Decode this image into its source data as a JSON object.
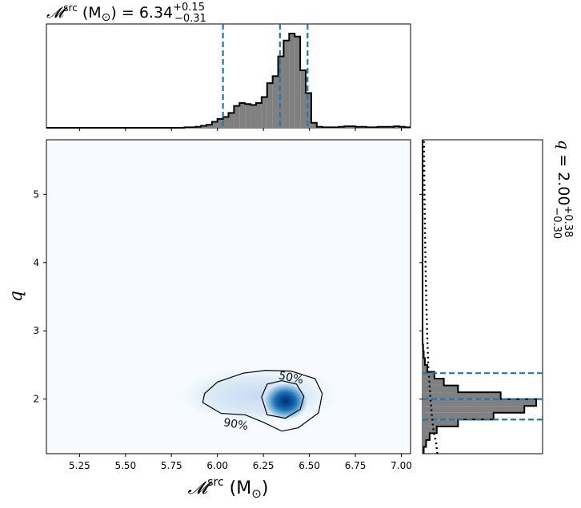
{
  "chart_data": [
    {
      "type": "histogram",
      "panel": "top-marginal",
      "title_symbol": "𝓜",
      "title_super": "src",
      "title_unit": " (M",
      "title_sun": "⊙",
      "title_close": ")",
      "title_eq": " = 6.34",
      "title_plus": "+0.15",
      "title_minus": "−0.31",
      "xlim": [
        5.07,
        7.05
      ],
      "bin_edges_start": 5.07,
      "bin_width": 0.03,
      "counts": [
        0,
        0,
        0,
        0,
        0,
        0,
        0,
        0,
        0,
        0,
        0,
        0,
        0,
        0,
        0,
        0,
        0,
        0,
        0,
        0,
        0,
        0,
        0,
        0,
        0,
        0.005,
        0.005,
        0.01,
        0.02,
        0.03,
        0.06,
        0.09,
        0.11,
        0.15,
        0.22,
        0.25,
        0.24,
        0.23,
        0.25,
        0.31,
        0.45,
        0.52,
        0.72,
        0.88,
        0.95,
        0.92,
        0.58,
        0.35,
        0.05,
        0.01,
        0.005,
        0.005,
        0.005,
        0.01,
        0.015,
        0.015,
        0.01,
        0.01,
        0.005,
        0.005,
        0.01,
        0.01,
        0.01,
        0.015,
        0.01,
        0.005
      ],
      "quantile_lines": [
        6.03,
        6.34,
        6.49
      ],
      "bar_color": "#808080",
      "line_color": "#1f77b4"
    },
    {
      "type": "heatmap",
      "panel": "joint",
      "xlabel_symbol": "𝓜",
      "xlabel_super": "src",
      "xlabel_unit": " (M",
      "xlabel_sun": "⊙",
      "xlabel_close": ")",
      "ylabel": "q",
      "xlim": [
        5.07,
        7.05
      ],
      "ylim": [
        1.2,
        5.8
      ],
      "xticks": [
        "5.25",
        "5.50",
        "5.75",
        "6.00",
        "6.25",
        "6.50",
        "6.75",
        "7.00"
      ],
      "xtick_values": [
        5.25,
        5.5,
        5.75,
        6.0,
        6.25,
        6.5,
        6.75,
        7.0
      ],
      "yticks": [
        "2",
        "3",
        "4",
        "5"
      ],
      "ytick_values": [
        2,
        3,
        4,
        5
      ],
      "peak": {
        "x": 6.37,
        "y": 1.97
      },
      "contours": [
        {
          "label": "50%",
          "level": 0.5,
          "points": [
            [
              6.24,
              2.03
            ],
            [
              6.27,
              2.22
            ],
            [
              6.35,
              2.27
            ],
            [
              6.43,
              2.22
            ],
            [
              6.47,
              2.04
            ],
            [
              6.45,
              1.85
            ],
            [
              6.37,
              1.72
            ],
            [
              6.27,
              1.77
            ],
            [
              6.24,
              2.03
            ]
          ]
        },
        {
          "label": "90%",
          "level": 0.9,
          "points": [
            [
              5.93,
              2.08
            ],
            [
              6.0,
              2.25
            ],
            [
              6.14,
              2.38
            ],
            [
              6.26,
              2.42
            ],
            [
              6.4,
              2.41
            ],
            [
              6.53,
              2.3
            ],
            [
              6.57,
              2.08
            ],
            [
              6.55,
              1.8
            ],
            [
              6.44,
              1.58
            ],
            [
              6.35,
              1.53
            ],
            [
              6.25,
              1.66
            ],
            [
              6.15,
              1.77
            ],
            [
              6.02,
              1.79
            ],
            [
              5.92,
              1.95
            ],
            [
              5.93,
              2.08
            ]
          ]
        }
      ],
      "colormap": "Blues"
    },
    {
      "type": "histogram",
      "panel": "right-marginal",
      "orientation": "horizontal",
      "title_sym": "q",
      "title_eq": " = 2.00",
      "title_plus": "+0.38",
      "title_minus": "−0.30",
      "ylim": [
        1.2,
        5.8
      ],
      "bin_edges_start": 1.2,
      "bin_width": 0.1,
      "counts": [
        0.01,
        0.03,
        0.06,
        0.12,
        0.3,
        0.6,
        0.86,
        0.96,
        0.66,
        0.3,
        0.18,
        0.1,
        0.04,
        0.02,
        0.01,
        0.005,
        0,
        0,
        0,
        0,
        0,
        0,
        0,
        0,
        0,
        0,
        0,
        0,
        0,
        0,
        0,
        0,
        0,
        0,
        0,
        0,
        0,
        0,
        0,
        0,
        0,
        0,
        0,
        0,
        0,
        0
      ],
      "quantile_lines": [
        1.7,
        2.0,
        2.38
      ],
      "prior_dotted": [
        [
          1.2,
          0.13
        ],
        [
          1.35,
          0.12
        ],
        [
          1.5,
          0.1
        ],
        [
          1.7,
          0.085
        ],
        [
          2.0,
          0.07
        ],
        [
          2.5,
          0.05
        ],
        [
          3.0,
          0.04
        ],
        [
          3.5,
          0.032
        ],
        [
          4.0,
          0.026
        ],
        [
          4.5,
          0.021
        ],
        [
          5.0,
          0.017
        ],
        [
          5.5,
          0.014
        ],
        [
          5.8,
          0.012
        ]
      ]
    }
  ]
}
